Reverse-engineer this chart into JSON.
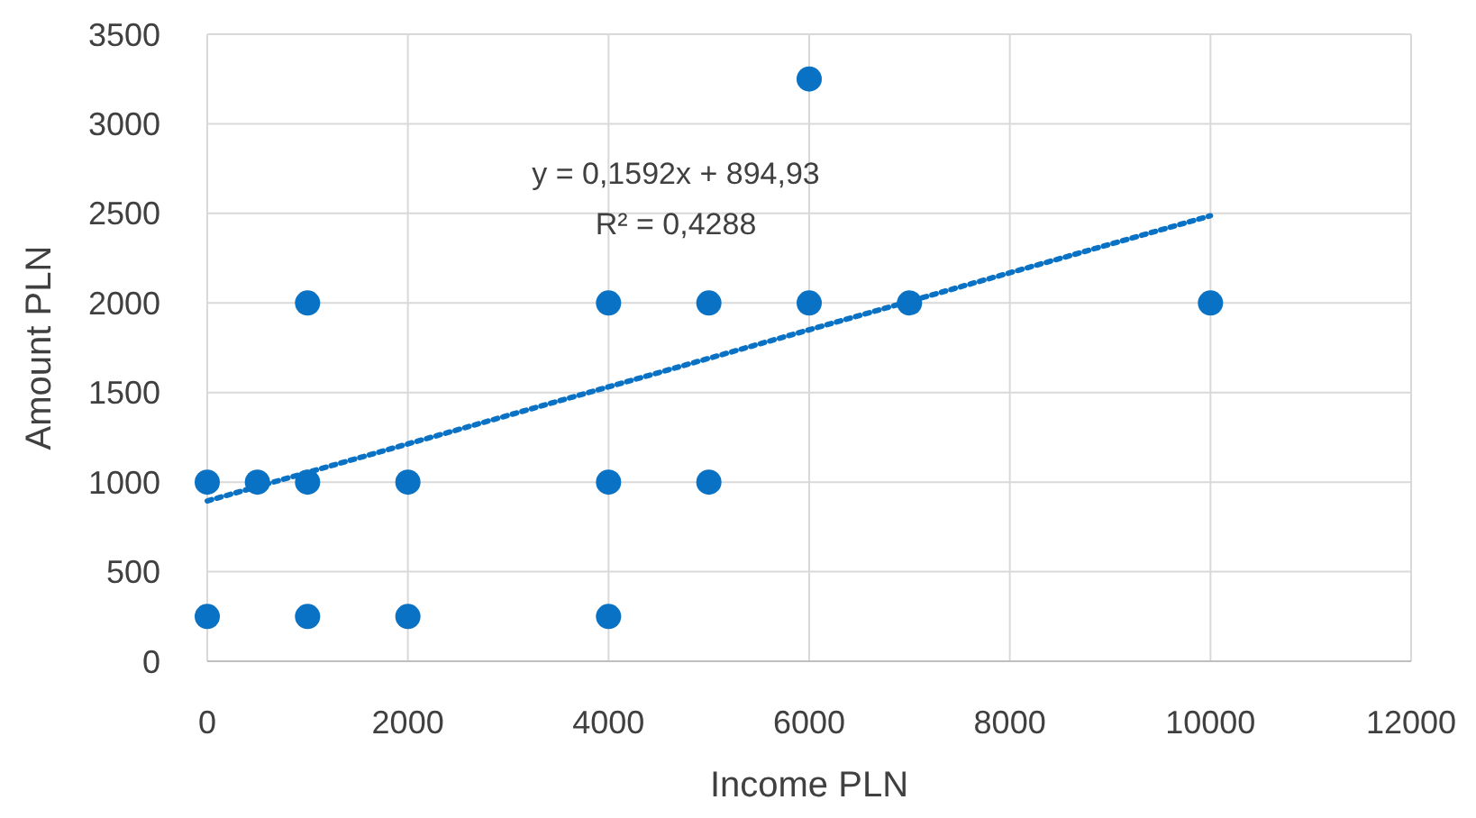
{
  "chart_data": {
    "type": "scatter",
    "xlabel": "Income PLN",
    "ylabel": "Amount PLN",
    "xlim": [
      0,
      12000
    ],
    "xticks": [
      0,
      2000,
      4000,
      6000,
      8000,
      10000,
      12000
    ],
    "ylim": [
      0,
      3500
    ],
    "yticks": [
      0,
      500,
      1000,
      1500,
      2000,
      2500,
      3000,
      3500
    ],
    "grid": true,
    "marker": "circle",
    "annotations": [
      "y = 0,1592x + 894,93",
      "R² = 0,4288"
    ],
    "series": [
      {
        "color": "#0a72c4",
        "x": [
          0,
          0,
          500,
          1000,
          1000,
          1000,
          2000,
          2000,
          4000,
          4000,
          4000,
          5000,
          5000,
          6000,
          6000,
          7000,
          10000
        ],
        "values": [
          250,
          1000,
          1000,
          2000,
          1000,
          250,
          1000,
          250,
          2000,
          1000,
          250,
          2000,
          1000,
          3250,
          2000,
          2000,
          2000
        ]
      },
      {
        "type": "line",
        "color": "#0a72c4",
        "line_style": "dotted",
        "marker": "none",
        "x": [
          0,
          10000
        ],
        "values": [
          894.93,
          2486.93
        ]
      }
    ]
  }
}
